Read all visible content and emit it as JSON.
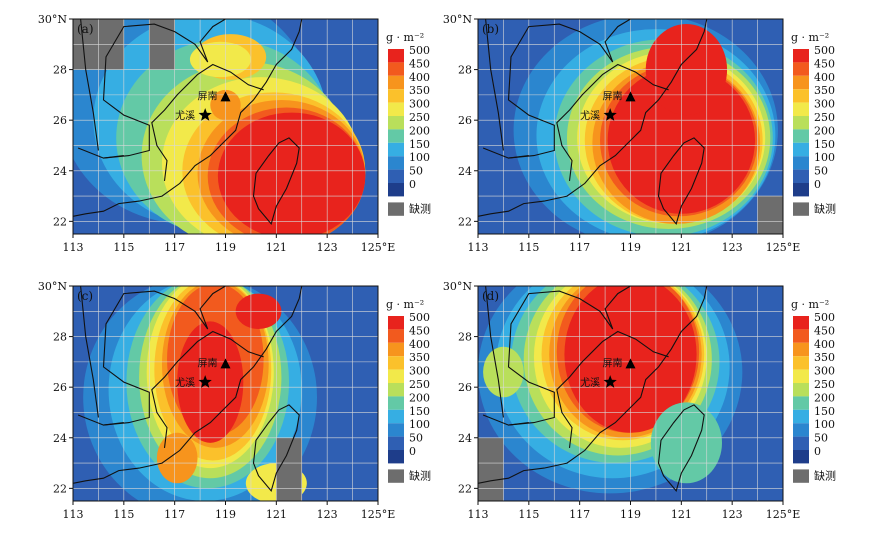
{
  "axes": {
    "x_ticks": [
      "113",
      "115",
      "117",
      "119",
      "121",
      "123",
      "125°E"
    ],
    "y_ticks": [
      "22",
      "24",
      "26",
      "28",
      "30°N"
    ]
  },
  "legend": {
    "unit": "g · m⁻²",
    "values": [
      "500",
      "450",
      "400",
      "350",
      "300",
      "250",
      "200",
      "150",
      "100",
      "50",
      "0"
    ],
    "missing_label": "缺测",
    "colors": [
      "#e8231d",
      "#f25a1e",
      "#f7941d",
      "#fbc12b",
      "#f2e94a",
      "#b9df5b",
      "#63c9a6",
      "#36aee3",
      "#2b86cf",
      "#2f5fb3",
      "#1e3d8a"
    ],
    "missing_color": "#6d6d6d"
  },
  "stations": {
    "pingnan": "屏南",
    "youxi": "尤溪"
  },
  "panels": [
    {
      "id": "a",
      "label": "(a)"
    },
    {
      "id": "b",
      "label": "(b)"
    },
    {
      "id": "c",
      "label": "(c)"
    },
    {
      "id": "d",
      "label": "(d)"
    }
  ]
}
